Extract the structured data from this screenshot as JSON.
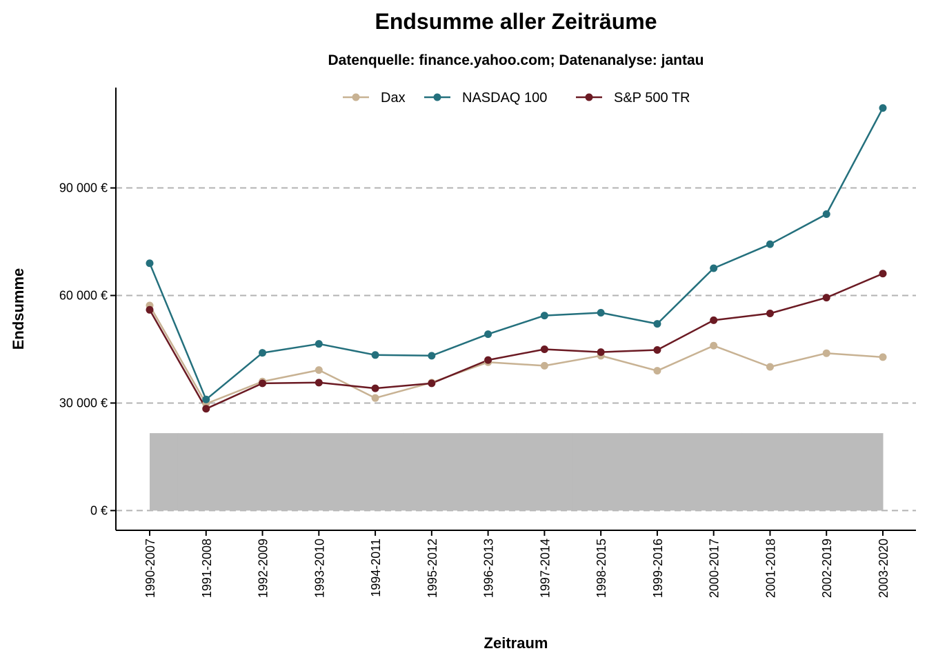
{
  "chart_data": {
    "type": "line",
    "title": "Endsumme aller Zeiträume",
    "subtitle": "Datenquelle: finance.yahoo.com; Datenanalyse: jantau",
    "xlabel": "Zeitraum",
    "ylabel": "Endsumme",
    "categories": [
      "1990-2007",
      "1991-2008",
      "1992-2009",
      "1993-2010",
      "1994-2011",
      "1995-2012",
      "1996-2013",
      "1997-2014",
      "1998-2015",
      "1999-2016",
      "2000-2017",
      "2001-2018",
      "2002-2019",
      "2003-2020"
    ],
    "y_ticks": [
      0,
      30000,
      60000,
      90000
    ],
    "y_tick_labels": [
      "0 €",
      "30 000 €",
      "60 000 €",
      "90 000 €"
    ],
    "ylim": [
      -5500,
      118000
    ],
    "grid": "horizontal dashed at y ticks",
    "legend_position": "top",
    "invested_amount": 21600,
    "series": [
      {
        "name": "Dax",
        "color": "#c8b293",
        "values": [
          57200,
          29800,
          36000,
          39200,
          31400,
          35700,
          41400,
          40400,
          43200,
          39000,
          46000,
          40100,
          43900,
          42800
        ]
      },
      {
        "name": "NASDAQ 100",
        "color": "#24707d",
        "values": [
          69000,
          31000,
          44000,
          46500,
          43400,
          43200,
          49200,
          54400,
          55200,
          52100,
          67600,
          74300,
          82700,
          112300
        ]
      },
      {
        "name": "S&P 500 TR",
        "color": "#6b1a23",
        "values": [
          56000,
          28400,
          35500,
          35700,
          34100,
          35500,
          42000,
          45000,
          44200,
          44800,
          53100,
          55000,
          59400,
          66100
        ]
      }
    ]
  }
}
